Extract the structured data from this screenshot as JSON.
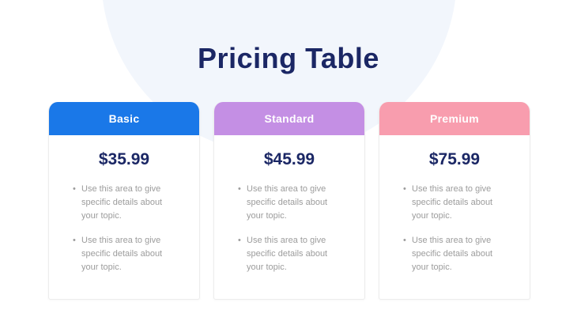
{
  "page": {
    "title": "Pricing Table",
    "title_color": "#1b2765",
    "blob_color": "#f2f6fc",
    "price_color": "#1b2765"
  },
  "plans": [
    {
      "name": "Basic",
      "price": "$35.99",
      "accent_color": "#1a78e8",
      "bullets": [
        "Use this area to give specific details about your topic.",
        "Use this area to give specific details about your topic."
      ]
    },
    {
      "name": "Standard",
      "price": "$45.99",
      "accent_color": "#c48fe4",
      "bullets": [
        "Use this area to give specific details about your topic.",
        "Use this area to give specific details about your topic."
      ]
    },
    {
      "name": "Premium",
      "price": "$75.99",
      "accent_color": "#f89dae",
      "bullets": [
        "Use this area to give specific details about your topic.",
        "Use this area to give specific details about your topic."
      ]
    }
  ]
}
